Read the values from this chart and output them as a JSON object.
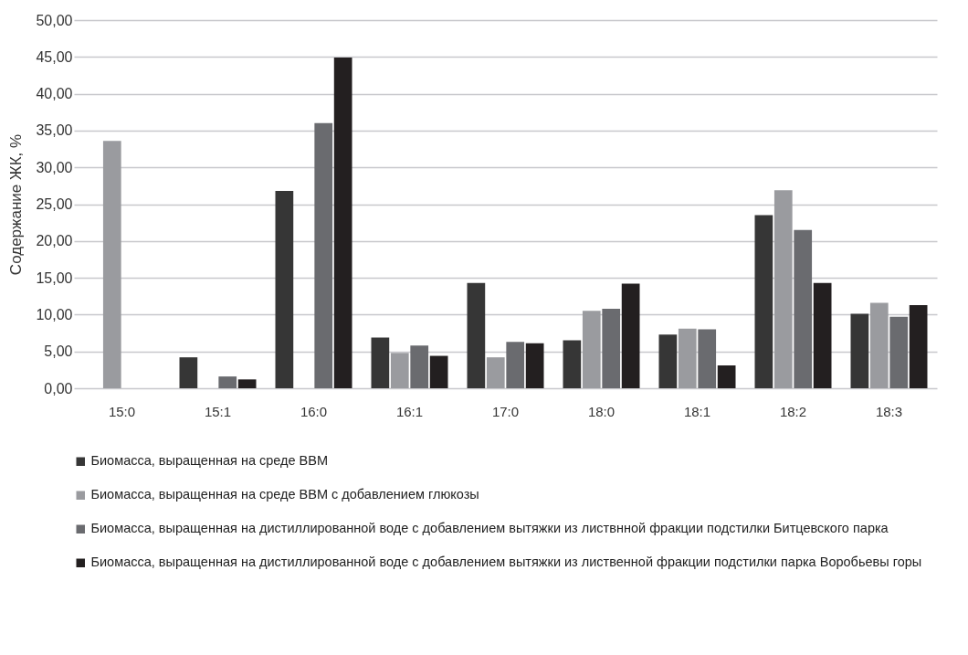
{
  "chart_data": {
    "type": "bar",
    "ylabel": "Содержание ЖК, %",
    "categories": [
      "15:0",
      "15:1",
      "16:0",
      "16:1",
      "17:0",
      "18:0",
      "18:1",
      "18:2",
      "18:3"
    ],
    "series": [
      {
        "name": "Биомасса, выращенная на среде BBM",
        "color": "#363636",
        "values": [
          null,
          4.2,
          26.8,
          6.9,
          14.3,
          6.5,
          7.3,
          23.5,
          10.1
        ]
      },
      {
        "name": "Биомасса, выращенная на среде BBM с добавлением глюкозы",
        "color": "#9a9b9f",
        "values": [
          33.6,
          null,
          null,
          4.8,
          4.2,
          10.5,
          8.1,
          26.9,
          11.6
        ]
      },
      {
        "name": "Биомасса, выращенная на дистиллированной воде с добавлением вытяжки из листвнной фракции подстилки  Битцевского парка",
        "color": "#6a6b6f",
        "values": [
          null,
          1.6,
          36.0,
          5.8,
          6.3,
          10.8,
          8.0,
          21.5,
          9.7
        ]
      },
      {
        "name": "Биомасса, выращенная на дистиллированной воде с добавлением вытяжки из лиственной фракции подстилки парка Воробьевы горы",
        "color": "#231f20",
        "values": [
          null,
          1.2,
          44.9,
          4.4,
          6.1,
          14.2,
          3.1,
          14.3,
          11.3
        ]
      }
    ],
    "ylim": [
      0,
      50
    ],
    "yticks": [
      {
        "value": 0,
        "label": "0,00"
      },
      {
        "value": 5,
        "label": "5,00"
      },
      {
        "value": 10,
        "label": "10,00"
      },
      {
        "value": 15,
        "label": "15,00"
      },
      {
        "value": 20,
        "label": "20,00"
      },
      {
        "value": 25,
        "label": "25,00"
      },
      {
        "value": 30,
        "label": "30,00"
      },
      {
        "value": 35,
        "label": "35,00"
      },
      {
        "value": 40,
        "label": "40,00"
      },
      {
        "value": 45,
        "label": "45,00"
      },
      {
        "value": 50,
        "label": "50,00"
      }
    ],
    "grid": "y",
    "legend": "bottom"
  }
}
